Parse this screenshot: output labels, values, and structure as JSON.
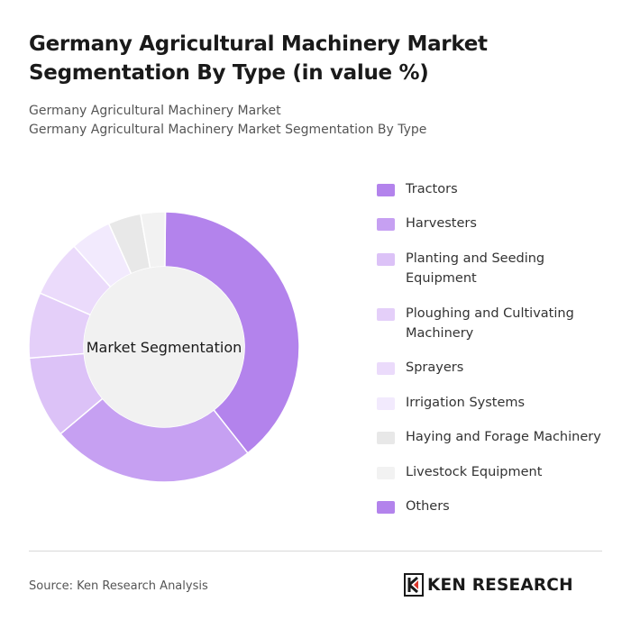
{
  "header": {
    "title_line1": "Germany Agricultural Machinery Market",
    "title_line2": "Segmentation By Type (in value %)",
    "subtitle_line1": "Germany Agricultural Machinery Market",
    "subtitle_line2": "Germany Agricultural Machinery Market Segmentation By Type"
  },
  "chart_data": {
    "type": "pie",
    "variant": "donut",
    "center_label": "Market Segmentation",
    "legend_position": "right",
    "categories": [
      "Tractors",
      "Harvesters",
      "Planting and Seeding Equipment",
      "Ploughing and Cultivating Machinery",
      "Sprayers",
      "Irrigation Systems",
      "Haying and Forage Machinery",
      "Livestock Equipment",
      "Others"
    ],
    "values": [
      40,
      25,
      10,
      8,
      7,
      5,
      4,
      3,
      0
    ],
    "colors": [
      "#b383ec",
      "#c6a0f2",
      "#dcc2f7",
      "#e4cff9",
      "#ebdbfb",
      "#f2eafd",
      "#e8e8e8",
      "#f2f2f2",
      "#b383ec"
    ]
  },
  "footer": {
    "source": "Source: Ken Research Analysis",
    "brand": "KEN RESEARCH"
  }
}
